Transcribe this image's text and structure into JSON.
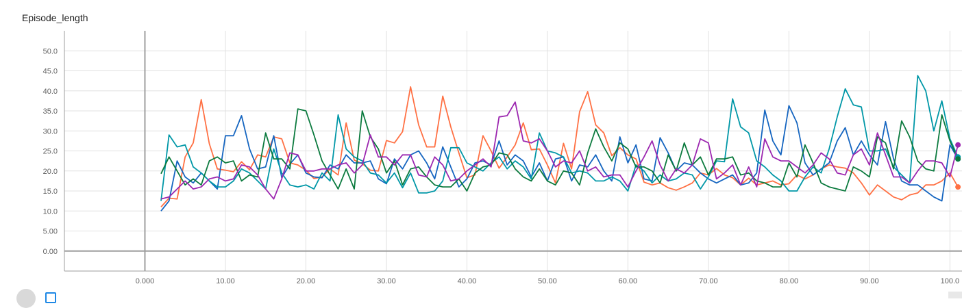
{
  "chart_data": {
    "type": "line",
    "title": "Episode_length",
    "xlabel": "",
    "ylabel": "",
    "xlim": [
      -10,
      101.5
    ],
    "ylim": [
      -5,
      55
    ],
    "grid": true,
    "x_ticks": [
      "0.000",
      "10.00",
      "20.00",
      "30.00",
      "40.00",
      "50.00",
      "60.00",
      "70.00",
      "80.00",
      "90.00",
      "100.0"
    ],
    "y_ticks": [
      "0.00",
      "5.00",
      "10.0",
      "15.0",
      "20.0",
      "25.0",
      "30.0",
      "35.0",
      "40.0",
      "45.0",
      "50.0"
    ],
    "x": [
      2,
      3,
      4,
      5,
      6,
      7,
      8,
      9,
      10,
      11,
      12,
      13,
      14,
      15,
      16,
      17,
      18,
      19,
      20,
      21,
      22,
      23,
      24,
      25,
      26,
      27,
      28,
      29,
      30,
      31,
      32,
      33,
      34,
      35,
      36,
      37,
      38,
      39,
      40,
      41,
      42,
      43,
      44,
      45,
      46,
      47,
      48,
      49,
      50,
      51,
      52,
      53,
      54,
      55,
      56,
      57,
      58,
      59,
      60,
      61,
      62,
      63,
      64,
      65,
      66,
      67,
      68,
      69,
      70,
      71,
      72,
      73,
      74,
      75,
      76,
      77,
      78,
      79,
      80,
      81,
      82,
      83,
      84,
      85,
      86,
      87,
      88,
      89,
      90,
      91,
      92,
      93,
      94,
      95,
      96,
      97,
      98,
      99,
      100,
      101
    ],
    "series": [
      {
        "color": "#ff7043",
        "values": [
          11.0,
          13.2,
          13.0,
          23.5,
          27.0,
          37.8,
          26.8,
          20.5,
          20.2,
          19.8,
          22.3,
          20.3,
          24.0,
          23.5,
          28.5,
          28.0,
          22.0,
          21.5,
          20.2,
          18.1,
          18.5,
          20.5,
          19.0,
          32.0,
          22.7,
          21.8,
          20.2,
          20.0,
          27.6,
          27.0,
          29.8,
          41.0,
          31.5,
          26.0,
          26.0,
          38.7,
          31.0,
          24.5,
          18.3,
          19.0,
          28.8,
          25.0,
          20.7,
          23.5,
          26.5,
          32.0,
          25.3,
          25.5,
          21.5,
          17.0,
          26.9,
          20.5,
          34.8,
          39.8,
          31.5,
          29.5,
          23.8,
          25.8,
          24.0,
          23.0,
          17.2,
          16.5,
          17.0,
          15.8,
          15.2,
          16.0,
          17.0,
          19.5,
          19.0,
          20.6,
          19.0,
          18.3,
          16.5,
          18.2,
          16.5,
          17.0,
          17.5,
          16.5,
          16.8,
          19.0,
          18.0,
          19.0,
          20.5,
          21.5,
          21.0,
          20.7,
          19.5,
          17.0,
          14.0,
          16.5,
          15.0,
          13.5,
          12.8,
          14.0,
          14.5,
          16.5,
          16.5,
          17.5,
          19.5,
          16.0
        ]
      },
      {
        "color": "#1565c0",
        "values": [
          10.0,
          12.5,
          22.5,
          18.5,
          17.0,
          19.5,
          17.5,
          15.5,
          28.8,
          28.8,
          33.8,
          25.5,
          20.5,
          21.0,
          28.8,
          18.3,
          21.7,
          24.0,
          19.5,
          18.5,
          18.3,
          21.5,
          20.5,
          24.0,
          22.0,
          22.0,
          22.5,
          18.0,
          16.8,
          23.0,
          20.5,
          24.0,
          25.0,
          22.0,
          18.0,
          26.0,
          21.0,
          16.0,
          18.0,
          22.0,
          22.5,
          21.5,
          27.5,
          21.5,
          24.0,
          22.5,
          18.5,
          22.0,
          17.5,
          23.0,
          23.5,
          17.5,
          21.5,
          21.0,
          24.0,
          20.0,
          17.5,
          28.5,
          22.0,
          26.5,
          18.0,
          17.5,
          28.3,
          24.5,
          20.0,
          22.0,
          21.5,
          19.5,
          18.0,
          17.0,
          18.0,
          19.0,
          16.5,
          17.0,
          19.5,
          35.2,
          27.5,
          24.0,
          36.3,
          32.0,
          22.0,
          19.0,
          20.5,
          22.0,
          27.5,
          30.8,
          24.0,
          27.5,
          24.0,
          21.5,
          32.3,
          23.0,
          17.5,
          16.5,
          16.5,
          15.0,
          13.5,
          12.5,
          26.5,
          23.0
        ]
      },
      {
        "color": "#0097a7",
        "values": [
          12.5,
          29.0,
          26.0,
          26.5,
          21.0,
          19.5,
          17.5,
          16.0,
          16.0,
          17.5,
          20.5,
          19.5,
          17.5,
          15.5,
          25.5,
          19.5,
          16.5,
          16.0,
          16.5,
          15.5,
          19.5,
          17.5,
          34.0,
          25.5,
          23.5,
          22.5,
          19.5,
          19.0,
          17.0,
          19.5,
          15.8,
          19.5,
          14.5,
          14.5,
          15.0,
          17.5,
          25.8,
          25.8,
          22.0,
          21.0,
          20.0,
          22.0,
          23.5,
          20.5,
          22.5,
          21.0,
          18.0,
          29.5,
          25.0,
          24.5,
          23.5,
          19.5,
          20.0,
          19.5,
          17.5,
          17.5,
          18.5,
          17.5,
          15.0,
          21.5,
          20.0,
          17.0,
          19.0,
          17.5,
          18.0,
          19.5,
          19.0,
          15.5,
          18.5,
          22.5,
          22.3,
          38.0,
          31.0,
          29.5,
          22.5,
          21.0,
          19.0,
          17.5,
          15.0,
          15.0,
          18.5,
          21.0,
          19.5,
          25.5,
          33.5,
          40.5,
          36.5,
          36.0,
          25.0,
          25.0,
          25.5,
          21.0,
          19.0,
          17.0,
          43.8,
          40.0,
          30.0,
          37.5,
          28.0,
          23.5
        ]
      },
      {
        "color": "#0b7a3e",
        "values": [
          19.3,
          23.5,
          20.0,
          16.5,
          18.0,
          16.5,
          22.5,
          23.5,
          22.0,
          22.5,
          17.5,
          19.0,
          18.5,
          29.5,
          23.0,
          23.0,
          20.5,
          35.5,
          35.0,
          29.0,
          22.5,
          19.0,
          15.5,
          20.5,
          15.5,
          35.0,
          28.5,
          25.5,
          19.5,
          22.5,
          16.5,
          20.5,
          21.0,
          18.5,
          16.5,
          16.0,
          16.0,
          18.0,
          15.0,
          19.5,
          21.0,
          21.5,
          24.5,
          24.0,
          20.5,
          18.5,
          17.5,
          20.5,
          17.5,
          16.5,
          20.0,
          19.5,
          16.5,
          24.5,
          30.5,
          26.0,
          22.5,
          27.0,
          25.5,
          21.0,
          21.0,
          20.0,
          17.0,
          24.0,
          20.0,
          27.0,
          21.5,
          23.5,
          19.0,
          23.0,
          23.0,
          23.5,
          19.0,
          19.5,
          17.5,
          17.0,
          16.0,
          16.0,
          22.0,
          18.5,
          26.5,
          22.0,
          17.0,
          16.0,
          15.5,
          15.0,
          21.0,
          20.0,
          18.5,
          28.5,
          27.0,
          20.5,
          32.5,
          28.5,
          22.5,
          20.5,
          20.0,
          34.0,
          27.5,
          23.0
        ]
      },
      {
        "color": "#9c27b0",
        "values": [
          13.0,
          13.5,
          15.5,
          17.5,
          15.5,
          16.0,
          18.0,
          18.5,
          17.5,
          18.0,
          21.5,
          21.0,
          19.0,
          15.5,
          13.0,
          18.0,
          24.5,
          24.0,
          20.0,
          20.0,
          20.5,
          20.5,
          21.5,
          22.0,
          19.5,
          21.5,
          29.0,
          23.5,
          23.5,
          21.5,
          24.0,
          24.0,
          19.0,
          18.5,
          23.5,
          21.5,
          17.5,
          18.0,
          20.0,
          21.5,
          23.0,
          21.0,
          33.5,
          33.8,
          37.2,
          27.5,
          27.0,
          28.0,
          25.0,
          21.0,
          22.5,
          22.0,
          25.0,
          20.0,
          21.0,
          18.5,
          19.0,
          19.0,
          16.0,
          20.0,
          23.5,
          27.5,
          21.5,
          17.5,
          20.5,
          19.5,
          21.5,
          28.0,
          27.0,
          18.0,
          19.5,
          21.5,
          16.5,
          21.0,
          16.0,
          28.0,
          23.5,
          22.5,
          22.5,
          21.0,
          19.5,
          21.5,
          24.5,
          23.0,
          19.5,
          19.0,
          24.0,
          25.5,
          21.5,
          29.5,
          24.0,
          18.5,
          18.5,
          17.0,
          20.0,
          22.5,
          22.5,
          22.0,
          18.5,
          26.5
        ]
      }
    ]
  }
}
